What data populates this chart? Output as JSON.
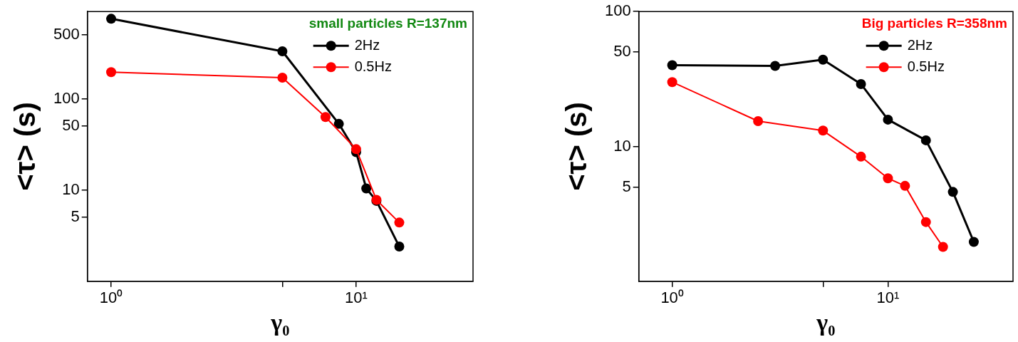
{
  "chart_data": [
    {
      "type": "line",
      "xlabel": "γ₀",
      "ylabel": "<τ> (s)",
      "legend_title": "small particles R=137nm",
      "legend": "top right",
      "marker": "circle",
      "line_style": "solid",
      "grid": false,
      "log": "xy",
      "xlim": [
        0.8,
        30
      ],
      "xticks": [
        {
          "value": 1,
          "label": "10⁰"
        },
        {
          "value": 5,
          "label": null
        },
        {
          "value": 10,
          "label": "10¹"
        }
      ],
      "ylim": [
        1,
        900
      ],
      "yticks": [
        5,
        10,
        50,
        100,
        500
      ],
      "series": [
        {
          "name": "2Hz",
          "color": "#000000",
          "x": [
            1,
            5,
            8.5,
            10,
            11,
            12.1,
            15
          ],
          "values": [
            750,
            330,
            53,
            26,
            10.4,
            7.6,
            2.4
          ]
        },
        {
          "name": "0.5Hz",
          "color": "#ff0000",
          "x": [
            1,
            5,
            7.5,
            10,
            12.1,
            15
          ],
          "values": [
            195,
            170,
            63,
            28,
            7.8,
            4.4
          ]
        }
      ]
    },
    {
      "type": "line",
      "xlabel": "γ₀",
      "ylabel": "<τ> (s)",
      "legend_title": "Big particles R=358nm",
      "legend": "top right",
      "marker": "circle",
      "line_style": "solid",
      "grid": false,
      "log": "xy",
      "xlim": [
        0.7,
        38
      ],
      "xticks": [
        {
          "value": 1,
          "label": "10⁰"
        },
        {
          "value": 5,
          "label": null
        },
        {
          "value": 10,
          "label": "10¹"
        }
      ],
      "ylim": [
        1,
        100
      ],
      "yticks": [
        5,
        10,
        50,
        100
      ],
      "series": [
        {
          "name": "2Hz",
          "color": "#000000",
          "x": [
            1,
            3,
            5,
            7.5,
            10,
            15,
            20,
            25
          ],
          "values": [
            40,
            39.5,
            44,
            29,
            15.8,
            11.1,
            4.6,
            1.96
          ]
        },
        {
          "name": "0.5Hz",
          "color": "#ff0000",
          "x": [
            1,
            2.5,
            5,
            7.5,
            10,
            12,
            15,
            18
          ],
          "values": [
            30,
            15.4,
            13.1,
            8.4,
            5.8,
            5.1,
            2.75,
            1.8
          ]
        }
      ]
    }
  ]
}
